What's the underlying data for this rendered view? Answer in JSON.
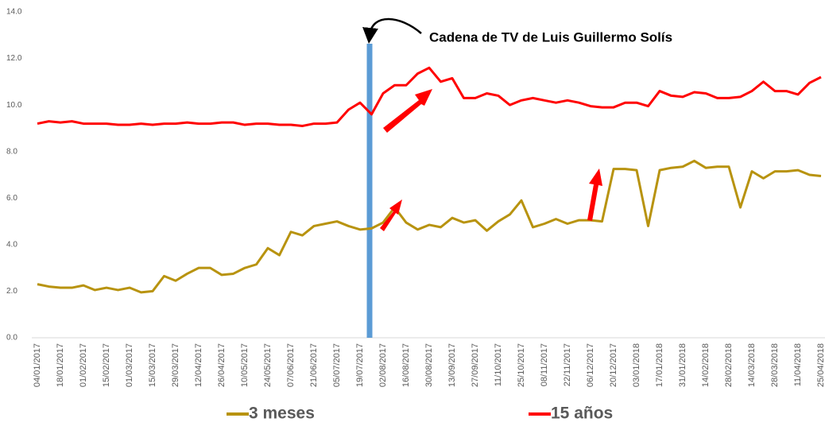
{
  "chart_data": {
    "type": "line",
    "annotation": "Cadena de TV de Luis Guillermo Solís",
    "categories": [
      "04/01/2017",
      null,
      "18/01/2017",
      null,
      "01/02/2017",
      null,
      "15/02/2017",
      null,
      "01/03/2017",
      null,
      "15/03/2017",
      null,
      "29/03/2017",
      null,
      "12/04/2017",
      null,
      "26/04/2017",
      null,
      "10/05/2017",
      null,
      "24/05/2017",
      null,
      "07/06/2017",
      null,
      "21/06/2017",
      null,
      "05/07/2017",
      null,
      "19/07/2017",
      null,
      "02/08/2017",
      null,
      "16/08/2017",
      null,
      "30/08/2017",
      null,
      "13/09/2017",
      null,
      "27/09/2017",
      null,
      "11/10/2017",
      null,
      "25/10/2017",
      null,
      "08/11/2017",
      null,
      "22/11/2017",
      null,
      "06/12/2017",
      null,
      "20/12/2017",
      null,
      "03/01/2018",
      null,
      "17/01/2018",
      null,
      "31/01/2018",
      null,
      "14/02/2018",
      null,
      "28/02/2018",
      null,
      "14/03/2018",
      null,
      "28/03/2018",
      null,
      "11/04/2018",
      null,
      "25/04/2018"
    ],
    "series": [
      {
        "name": "3 meses",
        "color": "#b8930f",
        "values": [
          2.3,
          2.2,
          2.15,
          2.15,
          2.25,
          2.05,
          2.15,
          2.05,
          2.15,
          1.95,
          2.0,
          2.65,
          2.45,
          2.75,
          3.0,
          3.0,
          2.7,
          2.75,
          3.0,
          3.15,
          3.85,
          3.55,
          4.55,
          4.4,
          4.8,
          4.9,
          5.0,
          4.8,
          4.65,
          4.7,
          4.95,
          5.6,
          4.95,
          4.65,
          4.85,
          4.75,
          5.15,
          4.95,
          5.05,
          4.6,
          5.0,
          5.3,
          5.9,
          4.75,
          4.9,
          5.1,
          4.9,
          5.05,
          5.05,
          5.0,
          7.25,
          7.25,
          7.2,
          4.8,
          7.2,
          7.3,
          7.35,
          7.6,
          7.3,
          7.35,
          7.35,
          5.6,
          7.15,
          6.85,
          7.15,
          7.15,
          7.2,
          7.0,
          6.95
        ]
      },
      {
        "name": "15 años",
        "color": "#ff0000",
        "values": [
          9.2,
          9.3,
          9.25,
          9.3,
          9.2,
          9.2,
          9.2,
          9.15,
          9.15,
          9.2,
          9.15,
          9.2,
          9.2,
          9.25,
          9.2,
          9.2,
          9.25,
          9.25,
          9.15,
          9.2,
          9.2,
          9.15,
          9.15,
          9.1,
          9.2,
          9.2,
          9.25,
          9.8,
          10.1,
          9.6,
          10.5,
          10.85,
          10.85,
          11.35,
          11.6,
          11.0,
          11.15,
          10.3,
          10.3,
          10.5,
          10.4,
          10.0,
          10.2,
          10.3,
          10.2,
          10.1,
          10.2,
          10.1,
          9.95,
          9.9,
          9.9,
          10.1,
          10.1,
          9.95,
          10.6,
          10.4,
          10.35,
          10.55,
          10.5,
          10.3,
          10.3,
          10.35,
          10.6,
          11.0,
          10.6,
          10.6,
          10.45,
          10.95,
          11.2
        ]
      }
    ],
    "ylim": [
      0,
      14
    ],
    "yticks": [
      {
        "value": 0,
        "label": "0.0"
      },
      {
        "value": 2,
        "label": "2.0"
      },
      {
        "value": 4,
        "label": "4.0"
      },
      {
        "value": 6,
        "label": "6.0"
      },
      {
        "value": 8,
        "label": "8.0"
      },
      {
        "value": 10,
        "label": "10.0"
      },
      {
        "value": 12,
        "label": "12.0"
      },
      {
        "value": 14,
        "label": "14.0"
      }
    ],
    "grid": false,
    "legend": "bottom"
  }
}
